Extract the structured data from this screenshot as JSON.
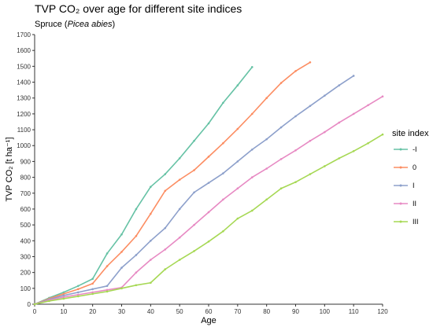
{
  "chart_data": {
    "type": "line",
    "title": "TVP CO₂ over age for different site indices",
    "subtitle": "Spruce (Picea abies)",
    "subtitle_plain": "Spruce (",
    "subtitle_italic": "Picea abies",
    "subtitle_end": ")",
    "xlabel": "Age",
    "ylabel": "TVP CO₂ [t ha⁻¹]",
    "xlim": [
      0,
      120
    ],
    "ylim": [
      0,
      1700
    ],
    "xticks": [
      0,
      10,
      20,
      30,
      40,
      50,
      60,
      70,
      80,
      90,
      100,
      110,
      120
    ],
    "yticks": [
      0,
      100,
      200,
      300,
      400,
      500,
      600,
      700,
      800,
      900,
      1000,
      1100,
      1200,
      1300,
      1400,
      1500,
      1600,
      1700
    ],
    "grid": false,
    "legend": {
      "title": "site index",
      "placement": "right"
    },
    "series": [
      {
        "name": "-I",
        "color": "#66c2a5",
        "x": [
          0,
          5,
          10,
          15,
          20,
          25,
          30,
          35,
          40,
          45,
          50,
          55,
          60,
          65,
          70,
          75
        ],
        "y": [
          0,
          40,
          75,
          115,
          160,
          320,
          440,
          600,
          740,
          820,
          920,
          1030,
          1140,
          1270,
          1380,
          1495
        ]
      },
      {
        "name": "0",
        "color": "#fc8d62",
        "x": [
          0,
          5,
          10,
          15,
          20,
          25,
          30,
          35,
          40,
          45,
          50,
          55,
          60,
          65,
          70,
          75,
          80,
          85,
          90,
          95
        ],
        "y": [
          0,
          35,
          65,
          95,
          130,
          240,
          330,
          430,
          570,
          715,
          785,
          845,
          930,
          1015,
          1105,
          1200,
          1300,
          1395,
          1470,
          1525
        ]
      },
      {
        "name": "I",
        "color": "#8da0cb",
        "x": [
          0,
          5,
          10,
          15,
          20,
          25,
          30,
          35,
          40,
          45,
          50,
          55,
          60,
          65,
          70,
          75,
          80,
          85,
          90,
          95,
          100,
          105,
          110
        ],
        "y": [
          0,
          30,
          55,
          75,
          95,
          115,
          230,
          310,
          400,
          480,
          600,
          705,
          765,
          825,
          900,
          975,
          1040,
          1115,
          1185,
          1250,
          1315,
          1380,
          1440
        ]
      },
      {
        "name": "II",
        "color": "#e78ac3",
        "x": [
          0,
          5,
          10,
          15,
          20,
          25,
          30,
          35,
          40,
          45,
          50,
          55,
          60,
          65,
          70,
          75,
          80,
          85,
          90,
          95,
          100,
          105,
          110,
          115,
          120
        ],
        "y": [
          0,
          25,
          45,
          60,
          75,
          90,
          105,
          200,
          280,
          345,
          420,
          500,
          580,
          660,
          730,
          800,
          855,
          915,
          970,
          1030,
          1085,
          1145,
          1200,
          1255,
          1310
        ]
      },
      {
        "name": "III",
        "color": "#a6d854",
        "x": [
          0,
          5,
          10,
          15,
          20,
          25,
          30,
          35,
          40,
          45,
          50,
          55,
          60,
          65,
          70,
          75,
          80,
          85,
          90,
          95,
          100,
          105,
          110,
          115,
          120
        ],
        "y": [
          0,
          20,
          35,
          50,
          65,
          80,
          100,
          120,
          135,
          220,
          280,
          335,
          395,
          460,
          540,
          590,
          660,
          730,
          770,
          820,
          870,
          920,
          965,
          1015,
          1070
        ]
      }
    ]
  }
}
